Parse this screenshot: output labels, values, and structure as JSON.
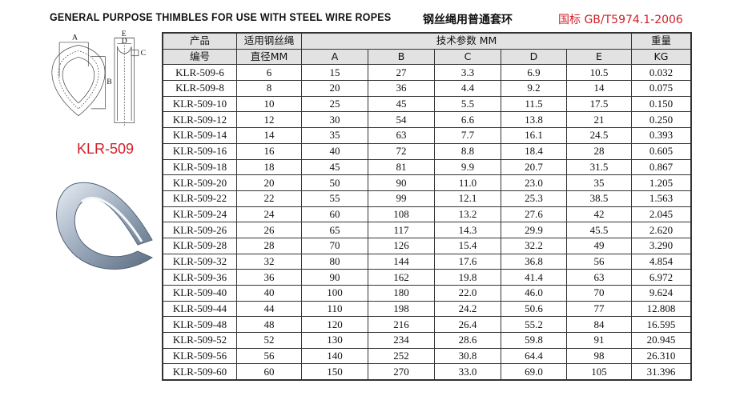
{
  "title_en": "GENERAL PURPOSE THIMBLES FOR USE WITH STEEL WIRE ROPES",
  "title_cn": "钢丝绳用普通套环",
  "standard": "国标 GB/T5974.1-2006",
  "model": "KLR-509",
  "diagram_labels": {
    "a": "A",
    "b": "B",
    "c": "C",
    "d": "D",
    "e": "E"
  },
  "colors": {
    "standard": "#d3202a",
    "header_bg": "#e2e2e2"
  },
  "table": {
    "headers": {
      "product_no_1": "产品",
      "product_no_2": "编号",
      "rope_dia_1": "适用钢丝绳",
      "rope_dia_2": "直径MM",
      "params": "技术参数 MM",
      "A": "A",
      "B": "B",
      "C": "C",
      "D": "D",
      "E": "E",
      "weight_1": "重量",
      "weight_2": "KG"
    },
    "rows": [
      [
        "KLR-509-6",
        "6",
        "15",
        "27",
        "3.3",
        "6.9",
        "10.5",
        "0.032"
      ],
      [
        "KLR-509-8",
        "8",
        "20",
        "36",
        "4.4",
        "9.2",
        "14",
        "0.075"
      ],
      [
        "KLR-509-10",
        "10",
        "25",
        "45",
        "5.5",
        "11.5",
        "17.5",
        "0.150"
      ],
      [
        "KLR-509-12",
        "12",
        "30",
        "54",
        "6.6",
        "13.8",
        "21",
        "0.250"
      ],
      [
        "KLR-509-14",
        "14",
        "35",
        "63",
        "7.7",
        "16.1",
        "24.5",
        "0.393"
      ],
      [
        "KLR-509-16",
        "16",
        "40",
        "72",
        "8.8",
        "18.4",
        "28",
        "0.605"
      ],
      [
        "KLR-509-18",
        "18",
        "45",
        "81",
        "9.9",
        "20.7",
        "31.5",
        "0.867"
      ],
      [
        "KLR-509-20",
        "20",
        "50",
        "90",
        "11.0",
        "23.0",
        "35",
        "1.205"
      ],
      [
        "KLR-509-22",
        "22",
        "55",
        "99",
        "12.1",
        "25.3",
        "38.5",
        "1.563"
      ],
      [
        "KLR-509-24",
        "24",
        "60",
        "108",
        "13.2",
        "27.6",
        "42",
        "2.045"
      ],
      [
        "KLR-509-26",
        "26",
        "65",
        "117",
        "14.3",
        "29.9",
        "45.5",
        "2.620"
      ],
      [
        "KLR-509-28",
        "28",
        "70",
        "126",
        "15.4",
        "32.2",
        "49",
        "3.290"
      ],
      [
        "KLR-509-32",
        "32",
        "80",
        "144",
        "17.6",
        "36.8",
        "56",
        "4.854"
      ],
      [
        "KLR-509-36",
        "36",
        "90",
        "162",
        "19.8",
        "41.4",
        "63",
        "6.972"
      ],
      [
        "KLR-509-40",
        "40",
        "100",
        "180",
        "22.0",
        "46.0",
        "70",
        "9.624"
      ],
      [
        "KLR-509-44",
        "44",
        "110",
        "198",
        "24.2",
        "50.6",
        "77",
        "12.808"
      ],
      [
        "KLR-509-48",
        "48",
        "120",
        "216",
        "26.4",
        "55.2",
        "84",
        "16.595"
      ],
      [
        "KLR-509-52",
        "52",
        "130",
        "234",
        "28.6",
        "59.8",
        "91",
        "20.945"
      ],
      [
        "KLR-509-56",
        "56",
        "140",
        "252",
        "30.8",
        "64.4",
        "98",
        "26.310"
      ],
      [
        "KLR-509-60",
        "60",
        "150",
        "270",
        "33.0",
        "69.0",
        "105",
        "31.396"
      ]
    ]
  }
}
